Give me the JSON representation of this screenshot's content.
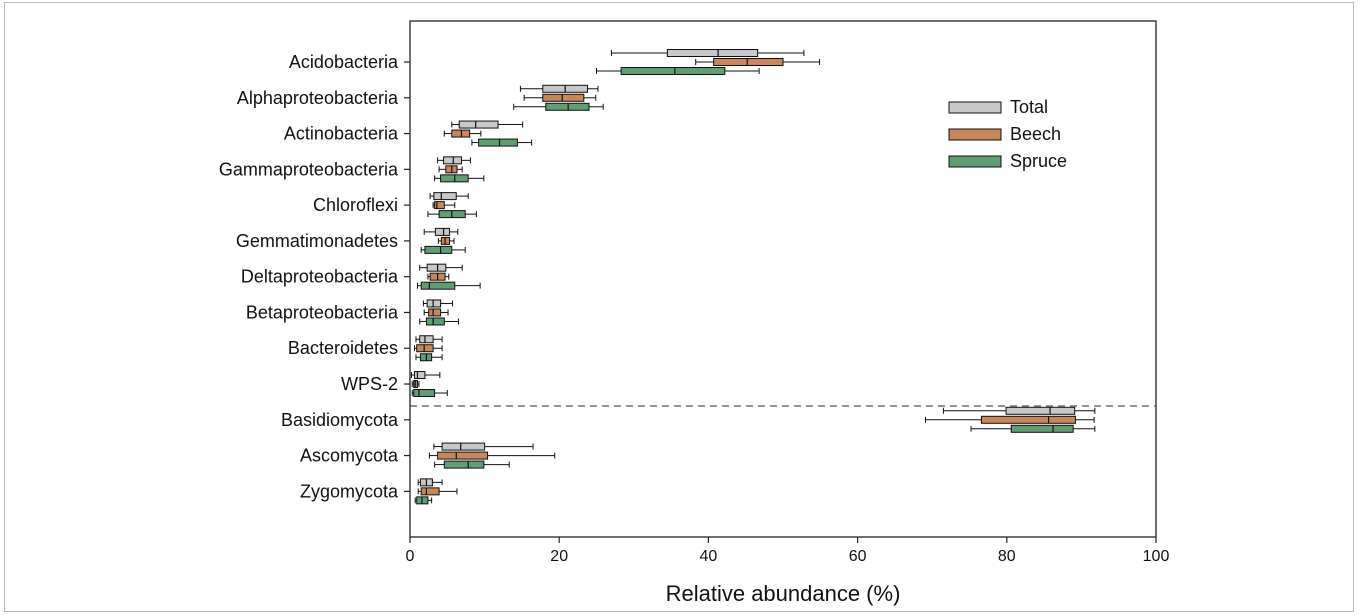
{
  "chart_data": {
    "type": "boxplot",
    "orientation": "horizontal",
    "title": "",
    "xlabel": "Relative abundance (%)",
    "ylabel": "",
    "xlim": [
      0,
      100
    ],
    "xticks": [
      0,
      20,
      40,
      60,
      80,
      100
    ],
    "grid": false,
    "legend_position": "top-right",
    "series": [
      {
        "name": "Total",
        "color": "#c8c8c8"
      },
      {
        "name": "Beech",
        "color": "#c8875a"
      },
      {
        "name": "Spruce",
        "color": "#5e9e72"
      }
    ],
    "separator_after": "WPS-2",
    "categories": [
      {
        "label": "Acidobacteria",
        "boxes": [
          {
            "series": "Total",
            "whisker_low": 27,
            "q1": 34.5,
            "median": 41.3,
            "q3": 46.6,
            "whisker_high": 52.8
          },
          {
            "series": "Beech",
            "whisker_low": 38.3,
            "q1": 40.7,
            "median": 45.2,
            "q3": 50,
            "whisker_high": 54.9
          },
          {
            "series": "Spruce",
            "whisker_low": 25,
            "q1": 28.3,
            "median": 35.5,
            "q3": 42.2,
            "whisker_high": 46.8
          }
        ]
      },
      {
        "label": "Alphaproteobacteria",
        "boxes": [
          {
            "series": "Total",
            "whisker_low": 14.8,
            "q1": 17.8,
            "median": 20.8,
            "q3": 23.8,
            "whisker_high": 25.2
          },
          {
            "series": "Beech",
            "whisker_low": 15.3,
            "q1": 17.8,
            "median": 20.4,
            "q3": 23.3,
            "whisker_high": 24.9
          },
          {
            "series": "Spruce",
            "whisker_low": 13.9,
            "q1": 18.2,
            "median": 21.2,
            "q3": 24,
            "whisker_high": 25.9
          }
        ]
      },
      {
        "label": "Actinobacteria",
        "boxes": [
          {
            "series": "Total",
            "whisker_low": 5.6,
            "q1": 6.6,
            "median": 8.8,
            "q3": 11.8,
            "whisker_high": 15.1
          },
          {
            "series": "Beech",
            "whisker_low": 4.6,
            "q1": 5.6,
            "median": 6.9,
            "q3": 8,
            "whisker_high": 9.5
          },
          {
            "series": "Spruce",
            "whisker_low": 8.3,
            "q1": 9.2,
            "median": 12,
            "q3": 14.4,
            "whisker_high": 16.3
          }
        ]
      },
      {
        "label": "Gammaproteobacteria",
        "boxes": [
          {
            "series": "Total",
            "whisker_low": 3.7,
            "q1": 4.5,
            "median": 5.8,
            "q3": 6.9,
            "whisker_high": 8.1
          },
          {
            "series": "Beech",
            "whisker_low": 3.9,
            "q1": 4.8,
            "median": 5.6,
            "q3": 6.3,
            "whisker_high": 7
          },
          {
            "series": "Spruce",
            "whisker_low": 3.3,
            "q1": 4.1,
            "median": 6,
            "q3": 7.8,
            "whisker_high": 9.9
          }
        ]
      },
      {
        "label": "Chloroflexi",
        "boxes": [
          {
            "series": "Total",
            "whisker_low": 2.7,
            "q1": 3.2,
            "median": 4.2,
            "q3": 6.2,
            "whisker_high": 7.8
          },
          {
            "series": "Beech",
            "whisker_low": 3.1,
            "q1": 3.3,
            "median": 3.6,
            "q3": 4.6,
            "whisker_high": 6
          },
          {
            "series": "Spruce",
            "whisker_low": 2.4,
            "q1": 3.9,
            "median": 5.6,
            "q3": 7.4,
            "whisker_high": 8.9
          }
        ]
      },
      {
        "label": "Gemmatimonadetes",
        "boxes": [
          {
            "series": "Total",
            "whisker_low": 1.9,
            "q1": 3.4,
            "median": 4.5,
            "q3": 5.3,
            "whisker_high": 6.4
          },
          {
            "series": "Beech",
            "whisker_low": 3.8,
            "q1": 4.2,
            "median": 4.7,
            "q3": 5.3,
            "whisker_high": 5.9
          },
          {
            "series": "Spruce",
            "whisker_low": 1.5,
            "q1": 2,
            "median": 4.1,
            "q3": 5.6,
            "whisker_high": 7.4
          }
        ]
      },
      {
        "label": "Deltaproteobacteria",
        "boxes": [
          {
            "series": "Total",
            "whisker_low": 1.3,
            "q1": 2.3,
            "median": 3.7,
            "q3": 4.8,
            "whisker_high": 7
          },
          {
            "series": "Beech",
            "whisker_low": 2.4,
            "q1": 2.7,
            "median": 3.7,
            "q3": 4.7,
            "whisker_high": 5.2
          },
          {
            "series": "Spruce",
            "whisker_low": 1,
            "q1": 1.5,
            "median": 2.6,
            "q3": 6,
            "whisker_high": 9.4
          }
        ]
      },
      {
        "label": "Betaproteobacteria",
        "boxes": [
          {
            "series": "Total",
            "whisker_low": 1.8,
            "q1": 2.3,
            "median": 3.1,
            "q3": 4.1,
            "whisker_high": 5.7
          },
          {
            "series": "Beech",
            "whisker_low": 1.9,
            "q1": 2.5,
            "median": 3.1,
            "q3": 4.1,
            "whisker_high": 5.1
          },
          {
            "series": "Spruce",
            "whisker_low": 1.3,
            "q1": 2.2,
            "median": 3.1,
            "q3": 4.6,
            "whisker_high": 6.5
          }
        ]
      },
      {
        "label": "Bacteroidetes",
        "boxes": [
          {
            "series": "Total",
            "whisker_low": 0.8,
            "q1": 1.3,
            "median": 2,
            "q3": 3.1,
            "whisker_high": 4.3
          },
          {
            "series": "Beech",
            "whisker_low": 0.6,
            "q1": 0.9,
            "median": 1.9,
            "q3": 3.1,
            "whisker_high": 4.3
          },
          {
            "series": "Spruce",
            "whisker_low": 0.8,
            "q1": 1.4,
            "median": 2.2,
            "q3": 2.9,
            "whisker_high": 4.3
          }
        ]
      },
      {
        "label": "WPS-2",
        "boxes": [
          {
            "series": "Total",
            "whisker_low": 0.2,
            "q1": 0.6,
            "median": 1,
            "q3": 2,
            "whisker_high": 4
          },
          {
            "series": "Beech",
            "whisker_low": 0.3,
            "q1": 0.5,
            "median": 0.7,
            "q3": 1,
            "whisker_high": 1.2
          },
          {
            "series": "Spruce",
            "whisker_low": 0.3,
            "q1": 0.5,
            "median": 1.2,
            "q3": 3.3,
            "whisker_high": 5
          }
        ]
      },
      {
        "label": "Basidiomycota",
        "boxes": [
          {
            "series": "Total",
            "whisker_low": 71.5,
            "q1": 79.9,
            "median": 85.8,
            "q3": 89.1,
            "whisker_high": 91.8
          },
          {
            "series": "Beech",
            "whisker_low": 69.1,
            "q1": 76.6,
            "median": 85.6,
            "q3": 89.2,
            "whisker_high": 91.7
          },
          {
            "series": "Spruce",
            "whisker_low": 75.2,
            "q1": 80.6,
            "median": 86.2,
            "q3": 88.9,
            "whisker_high": 91.8
          }
        ]
      },
      {
        "label": "Ascomycota",
        "boxes": [
          {
            "series": "Total",
            "whisker_low": 3.2,
            "q1": 4.3,
            "median": 6.8,
            "q3": 10,
            "whisker_high": 16.5
          },
          {
            "series": "Beech",
            "whisker_low": 2.6,
            "q1": 3.7,
            "median": 6.2,
            "q3": 10.4,
            "whisker_high": 19.4
          },
          {
            "series": "Spruce",
            "whisker_low": 3.3,
            "q1": 4.6,
            "median": 7.8,
            "q3": 9.9,
            "whisker_high": 13.3
          }
        ]
      },
      {
        "label": "Zygomycota",
        "boxes": [
          {
            "series": "Total",
            "whisker_low": 1.1,
            "q1": 1.4,
            "median": 2.2,
            "q3": 3,
            "whisker_high": 4.3
          },
          {
            "series": "Beech",
            "whisker_low": 1.1,
            "q1": 1.5,
            "median": 2.2,
            "q3": 3.9,
            "whisker_high": 6.3
          },
          {
            "series": "Spruce",
            "whisker_low": 0.7,
            "q1": 0.9,
            "median": 1.6,
            "q3": 2.4,
            "whisker_high": 2.9
          }
        ]
      }
    ]
  }
}
